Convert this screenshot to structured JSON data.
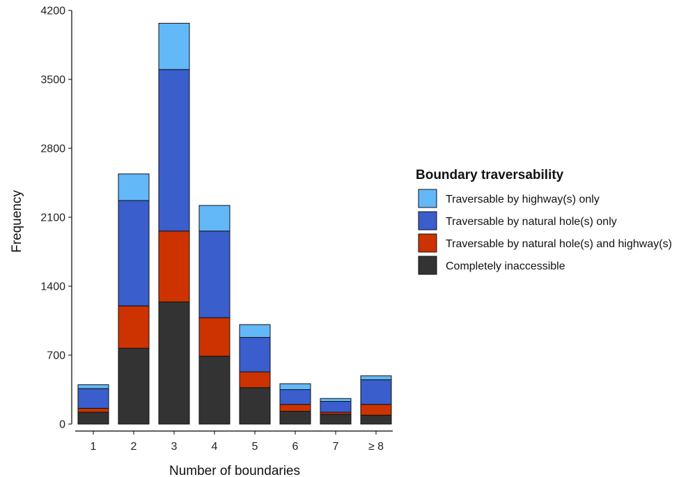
{
  "chart_data": {
    "type": "bar",
    "stacked": true,
    "xlabel": "Number of boundaries",
    "ylabel": "Frequency",
    "ylim": [
      0,
      4200
    ],
    "yticks": [
      0,
      700,
      1400,
      2100,
      2800,
      3500,
      4200
    ],
    "categories": [
      "1",
      "2",
      "3",
      "4",
      "5",
      "6",
      "7",
      "≥ 8"
    ],
    "legend": {
      "title": "Boundary traversability",
      "placement": "right"
    },
    "series": [
      {
        "name": "Completely inaccessible",
        "color": "#333333",
        "values": [
          120,
          770,
          1240,
          690,
          370,
          130,
          100,
          90
        ]
      },
      {
        "name": "Traversable by natural hole(s) and highway(s)",
        "color": "#cc3300",
        "values": [
          40,
          430,
          720,
          390,
          160,
          70,
          20,
          110
        ]
      },
      {
        "name": "Traversable by natural hole(s) only",
        "color": "#3a5ecc",
        "values": [
          200,
          1070,
          1640,
          880,
          350,
          150,
          110,
          250
        ]
      },
      {
        "name": "Traversable by highway(s) only",
        "color": "#63b8f7",
        "values": [
          40,
          270,
          470,
          260,
          130,
          60,
          30,
          40
        ]
      }
    ]
  }
}
